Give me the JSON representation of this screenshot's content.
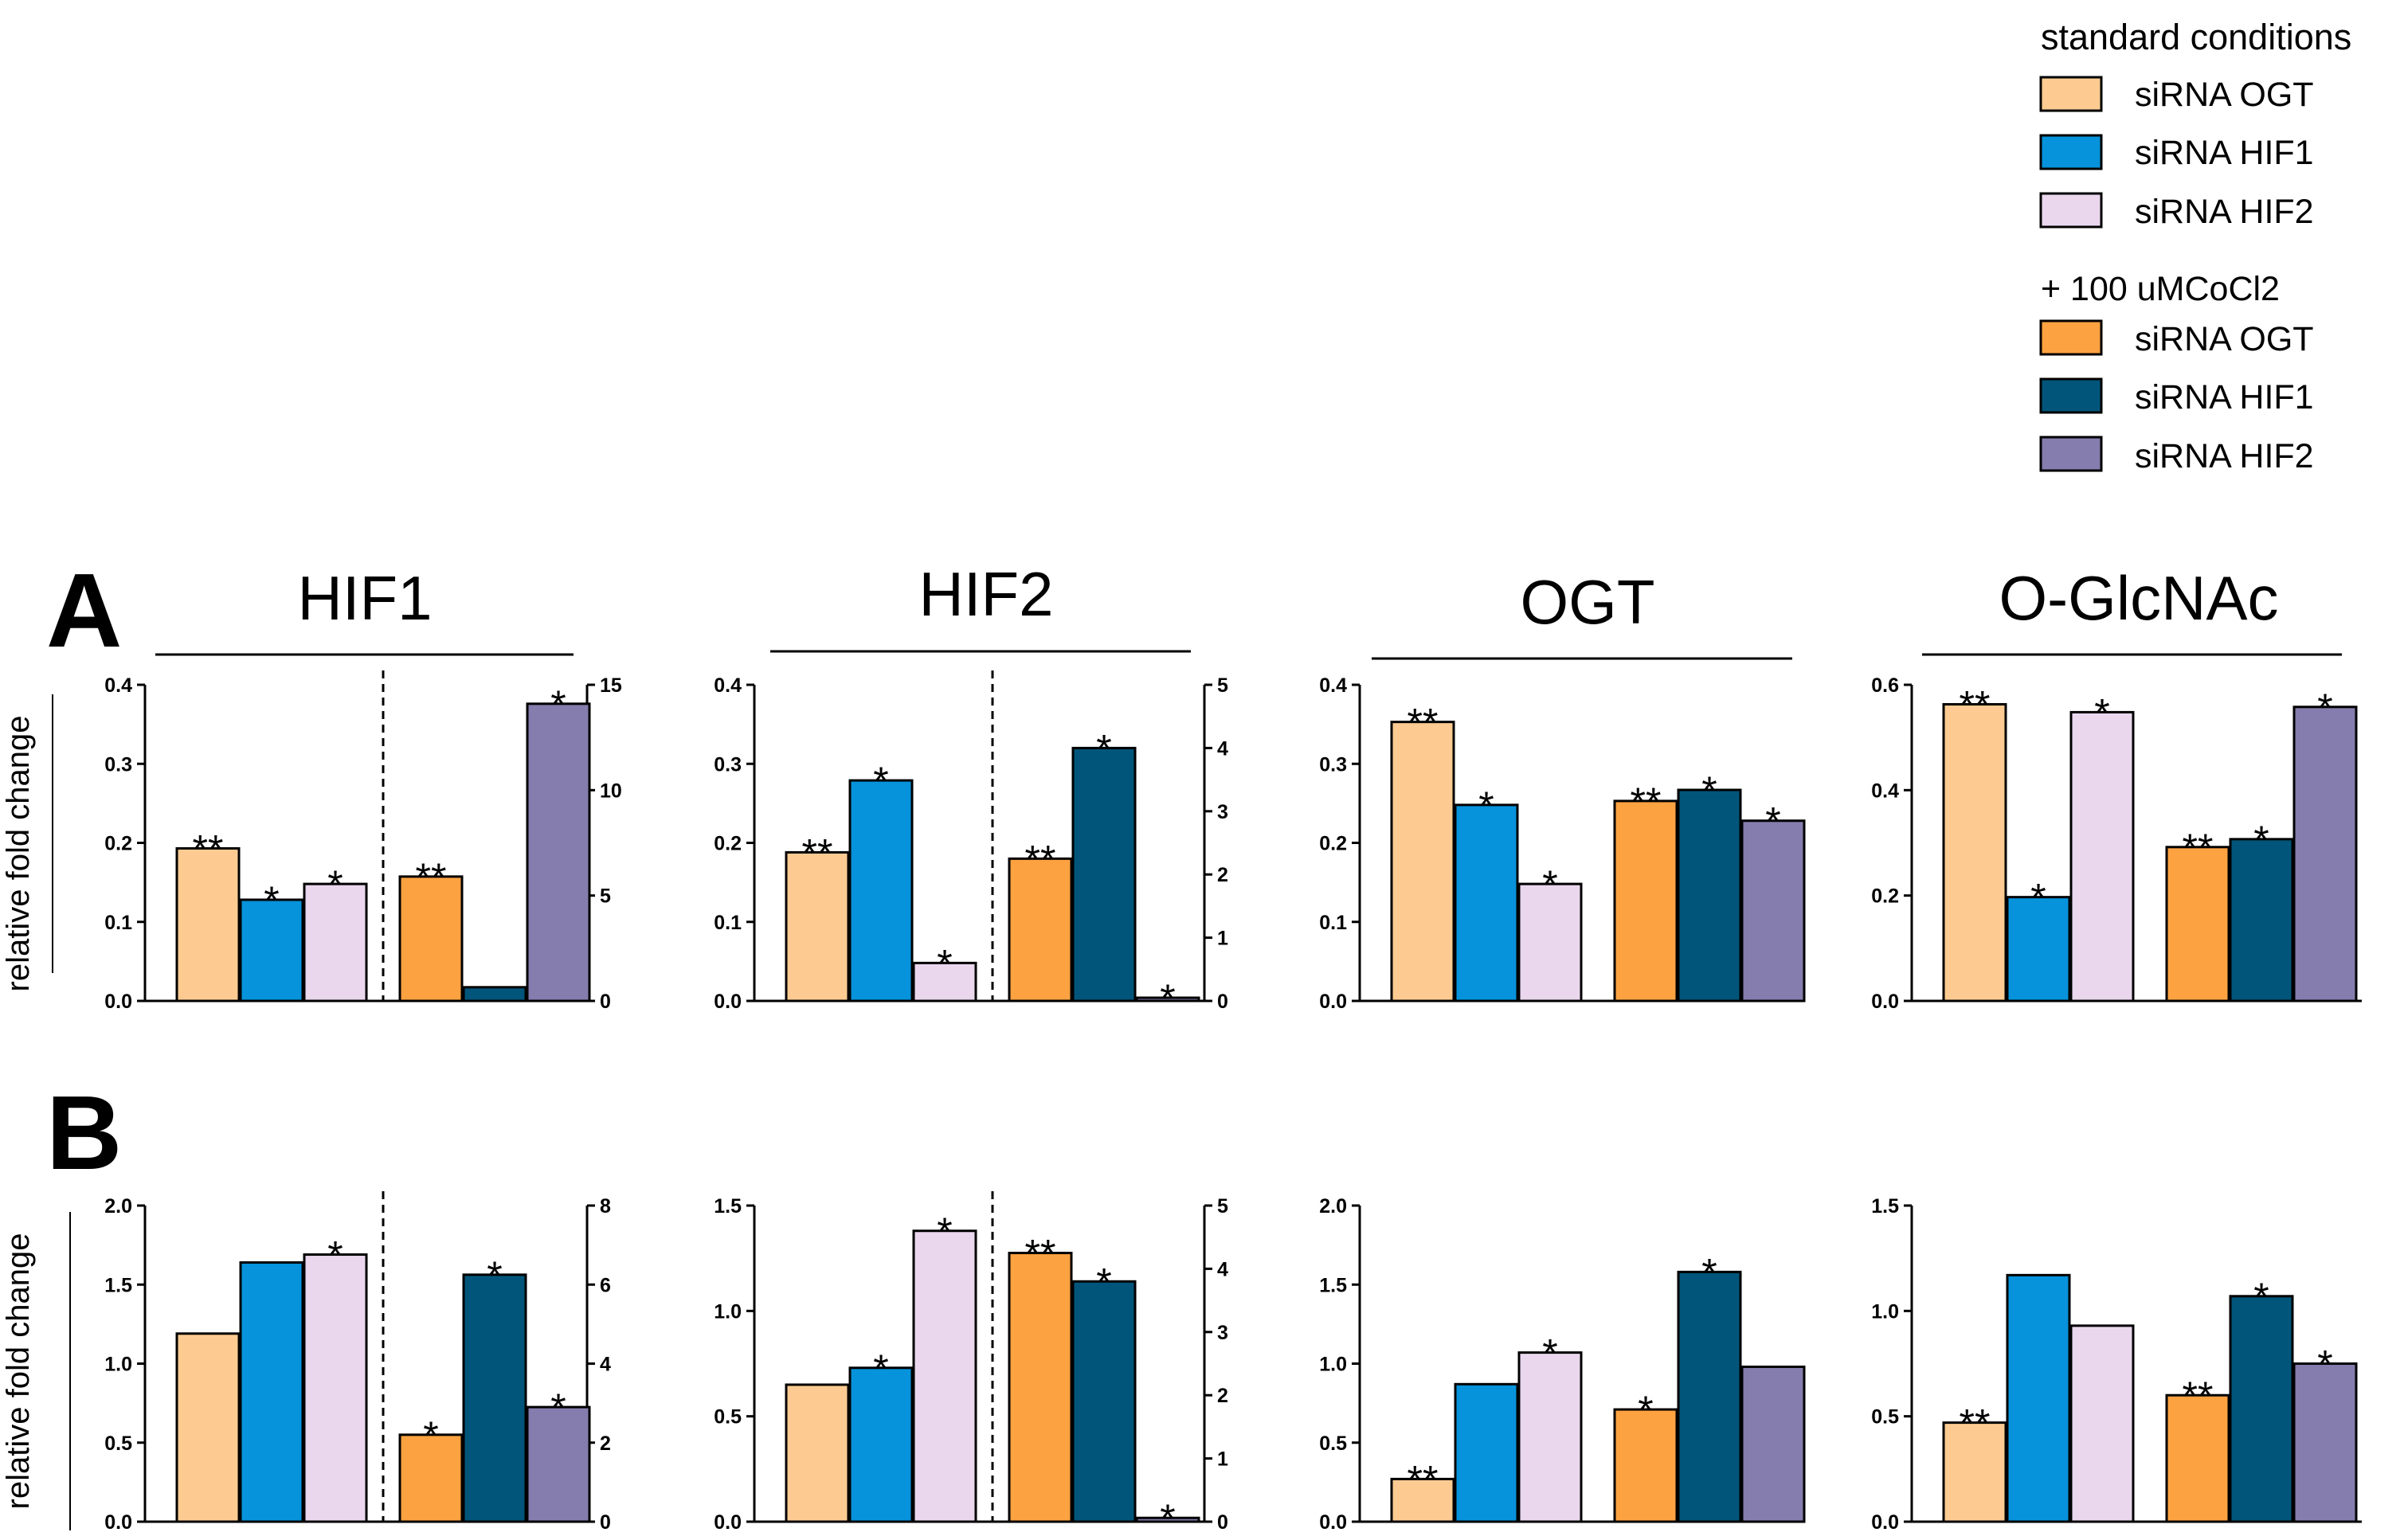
{
  "colors": {
    "std_ogt": "#FDCB92",
    "std_hif1": "#0693DB",
    "std_hif2": "#EAD7EE",
    "co_ogt": "#FDA241",
    "co_hif1": "#02557A",
    "co_hif2": "#847DAD",
    "axis": "#000000"
  },
  "legend": {
    "group1_title": "standard conditions",
    "group1_items": [
      {
        "label": "siRNA OGT",
        "color_key": "std_ogt"
      },
      {
        "label": "siRNA HIF1",
        "color_key": "std_hif1"
      },
      {
        "label": "siRNA HIF2",
        "color_key": "std_hif2"
      }
    ],
    "group2_title": "+ 100 uMCoCl2",
    "group2_items": [
      {
        "label": "siRNA OGT",
        "color_key": "co_ogt"
      },
      {
        "label": "siRNA HIF1",
        "color_key": "co_hif1"
      },
      {
        "label": "siRNA HIF2",
        "color_key": "co_hif2"
      }
    ]
  },
  "rows": [
    {
      "label": "A",
      "ylabel": "relative fold change"
    },
    {
      "label": "B",
      "ylabel": "relative fold change"
    }
  ],
  "column_titles": [
    "HIF1",
    "HIF2",
    "OGT",
    "O-GlcNAc"
  ],
  "chart_data": [
    {
      "type": "bar",
      "row": "A",
      "title": "HIF1",
      "ylabel": "relative fold change",
      "ylim": [
        0,
        0.4
      ],
      "yticks": [
        "0.0",
        "0.1",
        "0.2",
        "0.3",
        "0.4"
      ],
      "split": true,
      "ylim_right": [
        0,
        15
      ],
      "yticks_right": [
        "0",
        "5",
        "10",
        "15"
      ],
      "series": [
        {
          "name": "standard conditions siRNA OGT",
          "value": 0.193,
          "axis": "left",
          "sig": "**"
        },
        {
          "name": "standard conditions siRNA HIF1",
          "value": 0.128,
          "axis": "left",
          "sig": "*"
        },
        {
          "name": "standard conditions siRNA HIF2",
          "value": 0.148,
          "axis": "left",
          "sig": "*"
        },
        {
          "name": "+ 100 uMCoCl2 siRNA OGT",
          "value": 5.9,
          "axis": "right",
          "sig": "**"
        },
        {
          "name": "+ 100 uMCoCl2 siRNA HIF1",
          "value": 0.65,
          "axis": "right",
          "sig": ""
        },
        {
          "name": "+ 100 uMCoCl2 siRNA HIF2",
          "value": 14.1,
          "axis": "right",
          "sig": "*"
        }
      ]
    },
    {
      "type": "bar",
      "row": "A",
      "title": "HIF2",
      "ylabel": "relative fold change",
      "ylim": [
        0,
        0.4
      ],
      "yticks": [
        "0.0",
        "0.1",
        "0.2",
        "0.3",
        "0.4"
      ],
      "split": true,
      "ylim_right": [
        0,
        5
      ],
      "yticks_right": [
        "0",
        "1",
        "2",
        "3",
        "4",
        "5"
      ],
      "series": [
        {
          "name": "standard conditions siRNA OGT",
          "value": 0.188,
          "axis": "left",
          "sig": "**"
        },
        {
          "name": "standard conditions siRNA HIF1",
          "value": 0.279,
          "axis": "left",
          "sig": "*"
        },
        {
          "name": "standard conditions siRNA HIF2",
          "value": 0.048,
          "axis": "left",
          "sig": "*"
        },
        {
          "name": "+ 100 uMCoCl2 siRNA OGT",
          "value": 2.25,
          "axis": "right",
          "sig": "**"
        },
        {
          "name": "+ 100 uMCoCl2 siRNA HIF1",
          "value": 4.0,
          "axis": "right",
          "sig": "*"
        },
        {
          "name": "+ 100 uMCoCl2 siRNA HIF2",
          "value": 0.05,
          "axis": "right",
          "sig": "*"
        }
      ]
    },
    {
      "type": "bar",
      "row": "A",
      "title": "OGT",
      "ylabel": "relative fold change",
      "ylim": [
        0,
        0.4
      ],
      "yticks": [
        "0.0",
        "0.1",
        "0.2",
        "0.3",
        "0.4"
      ],
      "split": false,
      "series": [
        {
          "name": "standard conditions siRNA OGT",
          "value": 0.353,
          "axis": "left",
          "sig": "**"
        },
        {
          "name": "standard conditions siRNA HIF1",
          "value": 0.248,
          "axis": "left",
          "sig": "*"
        },
        {
          "name": "standard conditions siRNA HIF2",
          "value": 0.148,
          "axis": "left",
          "sig": "*"
        },
        {
          "name": "+ 100 uMCoCl2 siRNA OGT",
          "value": 0.253,
          "axis": "left",
          "sig": "**"
        },
        {
          "name": "+ 100 uMCoCl2 siRNA HIF1",
          "value": 0.267,
          "axis": "left",
          "sig": "*"
        },
        {
          "name": "+ 100 uMCoCl2 siRNA HIF2",
          "value": 0.228,
          "axis": "left",
          "sig": "*"
        }
      ]
    },
    {
      "type": "bar",
      "row": "A",
      "title": "O-GlcNAc",
      "ylabel": "relative fold change",
      "ylim": [
        0,
        0.6
      ],
      "yticks": [
        "0.0",
        "0.2",
        "0.4",
        "0.6"
      ],
      "split": false,
      "series": [
        {
          "name": "standard conditions siRNA OGT",
          "value": 0.563,
          "axis": "left",
          "sig": "**"
        },
        {
          "name": "standard conditions siRNA HIF1",
          "value": 0.197,
          "axis": "left",
          "sig": "*"
        },
        {
          "name": "standard conditions siRNA HIF2",
          "value": 0.548,
          "axis": "left",
          "sig": "*"
        },
        {
          "name": "+ 100 uMCoCl2 siRNA OGT",
          "value": 0.292,
          "axis": "left",
          "sig": "**"
        },
        {
          "name": "+ 100 uMCoCl2 siRNA HIF1",
          "value": 0.307,
          "axis": "left",
          "sig": "*"
        },
        {
          "name": "+ 100 uMCoCl2 siRNA HIF2",
          "value": 0.558,
          "axis": "left",
          "sig": "*"
        }
      ]
    },
    {
      "type": "bar",
      "row": "B",
      "title": "HIF1",
      "ylabel": "relative fold change",
      "ylim": [
        0,
        2.0
      ],
      "yticks": [
        "0.0",
        "0.5",
        "1.0",
        "1.5",
        "2.0"
      ],
      "split": true,
      "ylim_right": [
        0,
        8
      ],
      "yticks_right": [
        "0",
        "2",
        "4",
        "6",
        "8"
      ],
      "series": [
        {
          "name": "standard conditions siRNA OGT",
          "value": 1.19,
          "axis": "left",
          "sig": ""
        },
        {
          "name": "standard conditions siRNA HIF1",
          "value": 1.64,
          "axis": "left",
          "sig": ""
        },
        {
          "name": "standard conditions siRNA HIF2",
          "value": 1.69,
          "axis": "left",
          "sig": "*"
        },
        {
          "name": "+ 100 uMCoCl2 siRNA OGT",
          "value": 2.2,
          "axis": "right",
          "sig": "*"
        },
        {
          "name": "+ 100 uMCoCl2 siRNA HIF1",
          "value": 6.25,
          "axis": "right",
          "sig": "*"
        },
        {
          "name": "+ 100 uMCoCl2 siRNA HIF2",
          "value": 2.9,
          "axis": "right",
          "sig": "*"
        }
      ]
    },
    {
      "type": "bar",
      "row": "B",
      "title": "HIF2",
      "ylabel": "relative fold change",
      "ylim": [
        0,
        1.5
      ],
      "yticks": [
        "0.0",
        "0.5",
        "1.0",
        "1.5"
      ],
      "split": true,
      "ylim_right": [
        0,
        5
      ],
      "yticks_right": [
        "0",
        "1",
        "2",
        "3",
        "4",
        "5"
      ],
      "series": [
        {
          "name": "standard conditions siRNA OGT",
          "value": 0.65,
          "axis": "left",
          "sig": ""
        },
        {
          "name": "standard conditions siRNA HIF1",
          "value": 0.73,
          "axis": "left",
          "sig": "*"
        },
        {
          "name": "standard conditions siRNA HIF2",
          "value": 1.38,
          "axis": "left",
          "sig": "*"
        },
        {
          "name": "+ 100 uMCoCl2 siRNA OGT",
          "value": 4.25,
          "axis": "right",
          "sig": "**"
        },
        {
          "name": "+ 100 uMCoCl2 siRNA HIF1",
          "value": 3.8,
          "axis": "right",
          "sig": "*"
        },
        {
          "name": "+ 100 uMCoCl2 siRNA HIF2",
          "value": 0.06,
          "axis": "right",
          "sig": "*"
        }
      ]
    },
    {
      "type": "bar",
      "row": "B",
      "title": "OGT",
      "ylabel": "relative fold change",
      "ylim": [
        0,
        2.0
      ],
      "yticks": [
        "0.0",
        "0.5",
        "1.0",
        "1.5",
        "2.0"
      ],
      "split": false,
      "series": [
        {
          "name": "standard conditions siRNA OGT",
          "value": 0.27,
          "axis": "left",
          "sig": "**"
        },
        {
          "name": "standard conditions siRNA HIF1",
          "value": 0.87,
          "axis": "left",
          "sig": ""
        },
        {
          "name": "standard conditions siRNA HIF2",
          "value": 1.07,
          "axis": "left",
          "sig": "*"
        },
        {
          "name": "+ 100 uMCoCl2 siRNA OGT",
          "value": 0.71,
          "axis": "left",
          "sig": "*"
        },
        {
          "name": "+ 100 uMCoCl2 siRNA HIF1",
          "value": 1.58,
          "axis": "left",
          "sig": "*"
        },
        {
          "name": "+ 100 uMCoCl2 siRNA HIF2",
          "value": 0.98,
          "axis": "left",
          "sig": ""
        }
      ]
    },
    {
      "type": "bar",
      "row": "B",
      "title": "O-GlcNAc",
      "ylabel": "relative fold change",
      "ylim": [
        0,
        1.5
      ],
      "yticks": [
        "0.0",
        "0.5",
        "1.0",
        "1.5"
      ],
      "split": false,
      "series": [
        {
          "name": "standard conditions siRNA OGT",
          "value": 0.47,
          "axis": "left",
          "sig": "**"
        },
        {
          "name": "standard conditions siRNA HIF1",
          "value": 1.17,
          "axis": "left",
          "sig": ""
        },
        {
          "name": "standard conditions siRNA HIF2",
          "value": 0.93,
          "axis": "left",
          "sig": ""
        },
        {
          "name": "+ 100 uMCoCl2 siRNA OGT",
          "value": 0.6,
          "axis": "left",
          "sig": "**"
        },
        {
          "name": "+ 100 uMCoCl2 siRNA HIF1",
          "value": 1.07,
          "axis": "left",
          "sig": "*"
        },
        {
          "name": "+ 100 uMCoCl2 siRNA HIF2",
          "value": 0.75,
          "axis": "left",
          "sig": "*"
        }
      ]
    }
  ]
}
